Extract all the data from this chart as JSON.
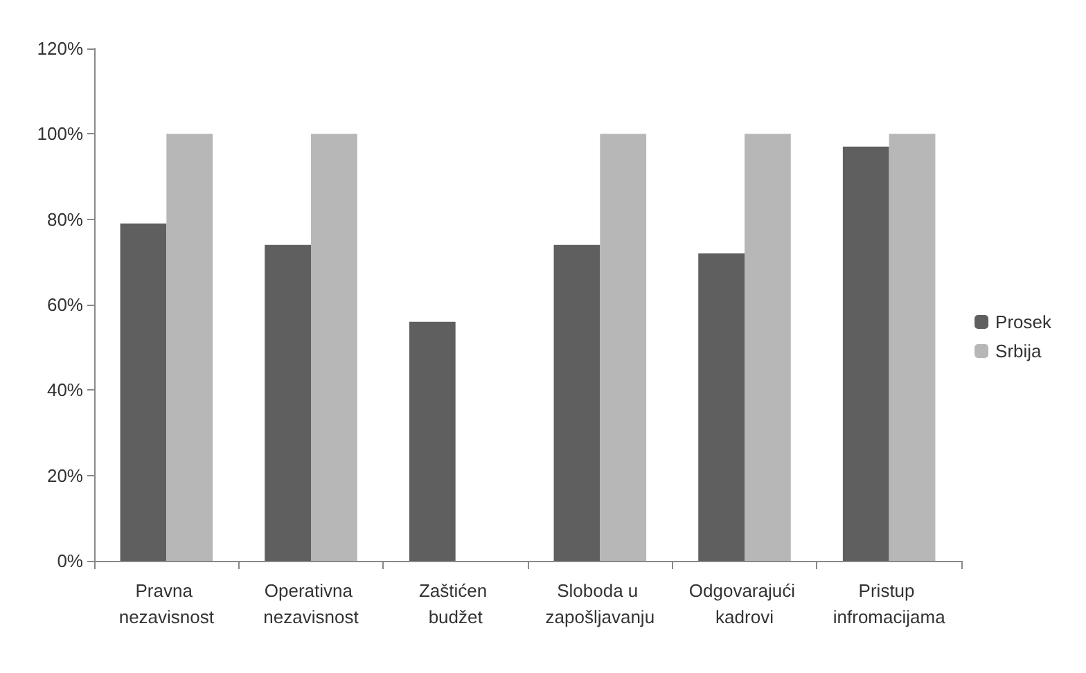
{
  "chart_data": {
    "type": "bar",
    "categories": [
      "Pravna nezavisnost",
      "Operativna nezavisnost",
      "Zaštićen budžet",
      "Sloboda u zapošljavanju",
      "Odgovarajući kadrovi",
      "Pristup infromacijama"
    ],
    "series": [
      {
        "name": "Prosek",
        "color": "#5f5f5f",
        "values": [
          79,
          74,
          56,
          74,
          72,
          97
        ]
      },
      {
        "name": "Srbija",
        "color": "#b7b7b7",
        "values": [
          100,
          100,
          0,
          100,
          100,
          100
        ]
      }
    ],
    "ylim": [
      0,
      120
    ],
    "yticks": [
      {
        "value": 0,
        "label": "0%"
      },
      {
        "value": 20,
        "label": "20%"
      },
      {
        "value": 40,
        "label": "40%"
      },
      {
        "value": 60,
        "label": "60%"
      },
      {
        "value": 80,
        "label": "80%"
      },
      {
        "value": 100,
        "label": "100%"
      },
      {
        "value": 120,
        "label": "120%"
      }
    ],
    "grid": false,
    "legend": "right"
  }
}
